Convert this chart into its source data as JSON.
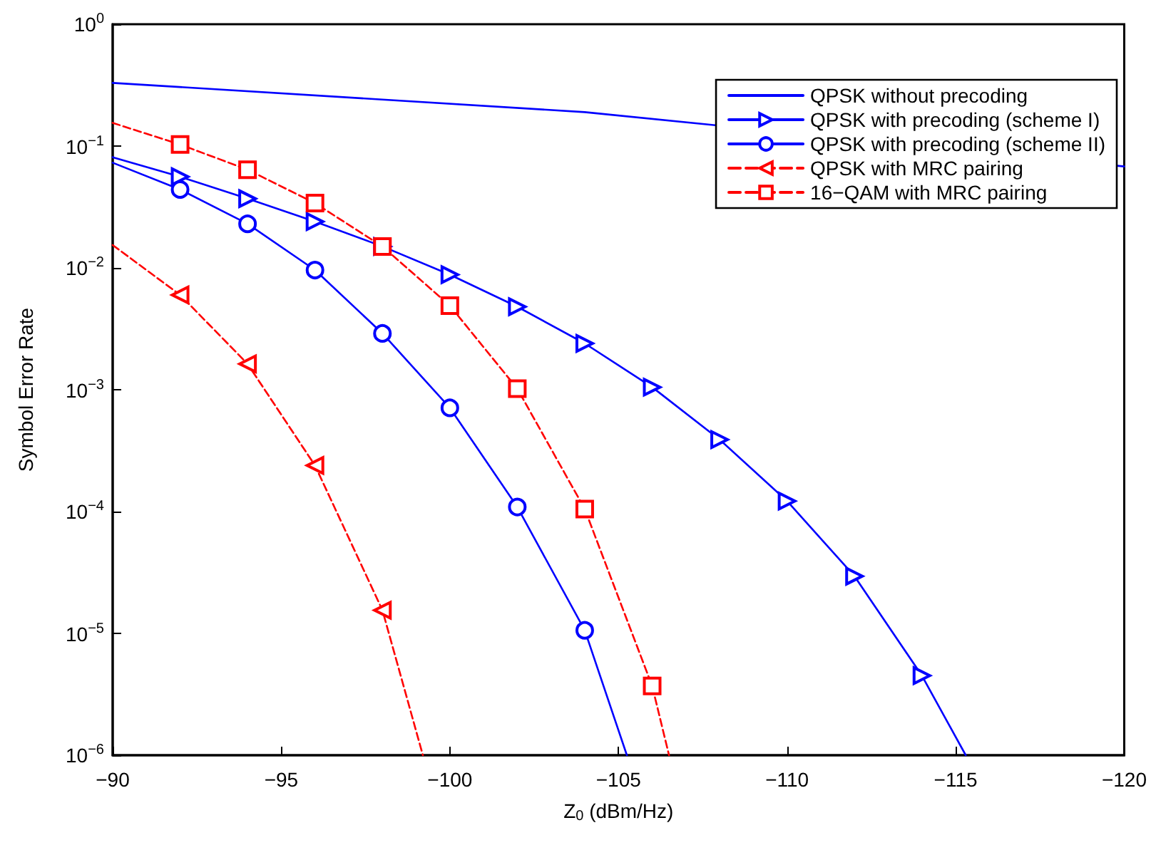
{
  "chart_data": {
    "type": "line",
    "xlabel": "Z$_{0}$ (dBm/Hz)",
    "ylabel": "Symbol Error Rate",
    "log": "y",
    "grid": false,
    "legend": "top right",
    "xlim": [
      -90,
      -120
    ],
    "xticks": [
      {
        "value": -90,
        "label": "−90"
      },
      {
        "value": -95,
        "label": "−95"
      },
      {
        "value": -100,
        "label": "−100"
      },
      {
        "value": -105,
        "label": "−105"
      },
      {
        "value": -110,
        "label": "−110"
      },
      {
        "value": -115,
        "label": "−115"
      },
      {
        "value": -120,
        "label": "−120"
      }
    ],
    "ylim": [
      1e-06,
      1
    ],
    "yticks": [
      {
        "value": 1e-06,
        "label": "10$^{−6}$"
      },
      {
        "value": 1e-05,
        "label": "10$^{−5}$"
      },
      {
        "value": 0.0001,
        "label": "10$^{−4}$"
      },
      {
        "value": 0.001,
        "label": "10$^{−3}$"
      },
      {
        "value": 0.01,
        "label": "10$^{−2}$"
      },
      {
        "value": 0.1,
        "label": "10$^{−1}$"
      },
      {
        "value": 1,
        "label": "10$^{0}$"
      }
    ],
    "series": [
      {
        "name": "QPSK without precoding",
        "color": "#0000ff",
        "marker": "none",
        "line_style": "solid",
        "x": [
          -90,
          -104,
          -120
        ],
        "values": [
          0.33,
          0.19,
          0.068
        ]
      },
      {
        "name": "QPSK with precoding (scheme I)",
        "color": "#0000ff",
        "marker": "triangle-right",
        "line_style": "solid",
        "x": [
          -90,
          -92,
          -94,
          -96,
          -98,
          -100,
          -102,
          -104,
          -106,
          -108,
          -110,
          -112,
          -114,
          -115.3
        ],
        "values": [
          0.081,
          0.056,
          0.037,
          0.024,
          0.015,
          0.0088,
          0.0048,
          0.0024,
          0.00105,
          0.00039,
          0.000122,
          2.95e-05,
          4.5e-06,
          1e-06
        ]
      },
      {
        "name": "QPSK with precoding (scheme II)",
        "color": "#0000ff",
        "marker": "circle",
        "line_style": "solid",
        "x": [
          -90,
          -92,
          -94,
          -96,
          -98,
          -100,
          -102,
          -104,
          -105.25
        ],
        "values": [
          0.073,
          0.044,
          0.023,
          0.0096,
          0.0029,
          0.00071,
          0.000109,
          1.06e-05,
          1e-06
        ]
      },
      {
        "name": "QPSK with MRC pairing",
        "color": "#ff0000",
        "marker": "triangle-left",
        "line_style": "dashed",
        "x": [
          -90,
          -92,
          -94,
          -96,
          -98,
          -99.2
        ],
        "values": [
          0.0154,
          0.006,
          0.00163,
          0.000239,
          1.55e-05,
          1e-06
        ]
      },
      {
        "name": "16−QAM with MRC pairing",
        "color": "#ff0000",
        "marker": "square",
        "line_style": "dashed",
        "x": [
          -90,
          -92,
          -94,
          -96,
          -98,
          -100,
          -102,
          -104,
          -106,
          -106.5
        ],
        "values": [
          0.155,
          0.103,
          0.064,
          0.034,
          0.015,
          0.0049,
          0.00102,
          0.000105,
          3.7e-06,
          1e-06
        ]
      }
    ]
  }
}
